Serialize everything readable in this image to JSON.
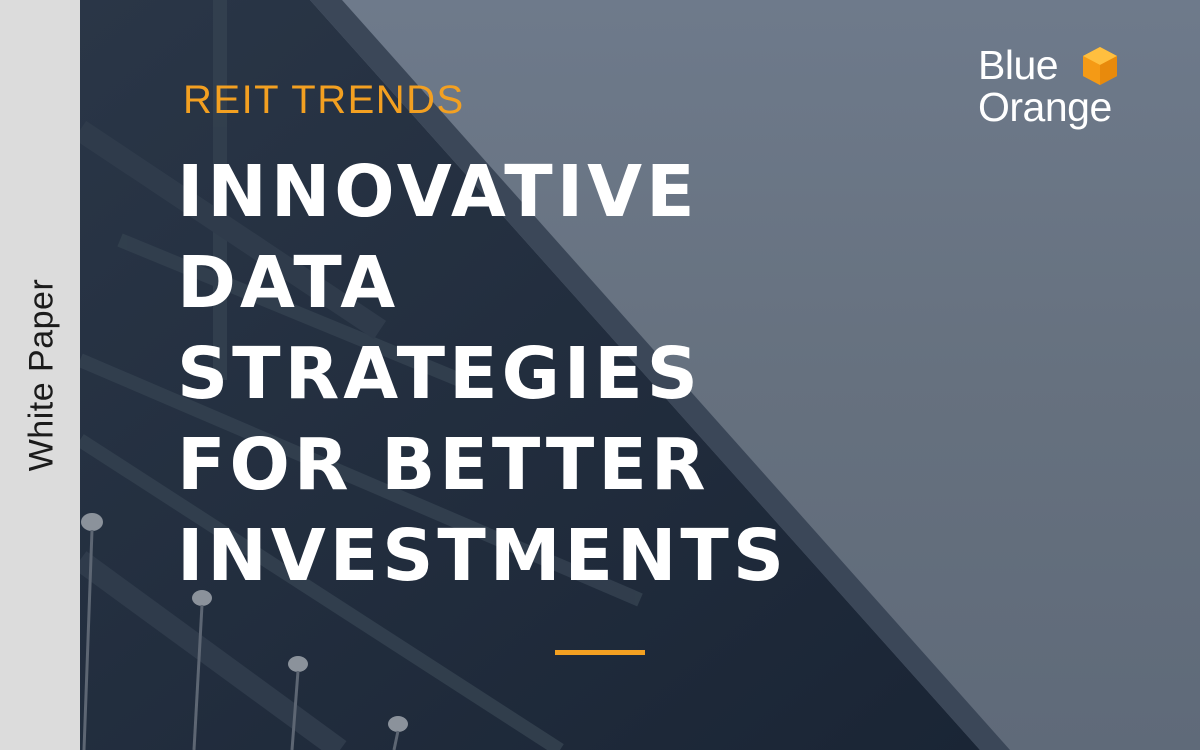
{
  "sidebar": {
    "label": "White Paper"
  },
  "hero": {
    "eyebrow": "REIT TRENDS",
    "headline_lines": [
      "INNOVATIVE",
      "DATA",
      "STRATEGIES",
      "FOR BETTER",
      "INVESTMENTS"
    ]
  },
  "logo": {
    "line1": "Blue",
    "line2": "Orange"
  },
  "colors": {
    "accent": "#f3a021",
    "sidebar_bg": "#dcdcdc",
    "dark_structure": "#1e2a3a",
    "sky": "#6e7a8b",
    "headline": "#ffffff"
  },
  "icons": {
    "logo_mark": "orange-hexagon-cube-icon"
  }
}
